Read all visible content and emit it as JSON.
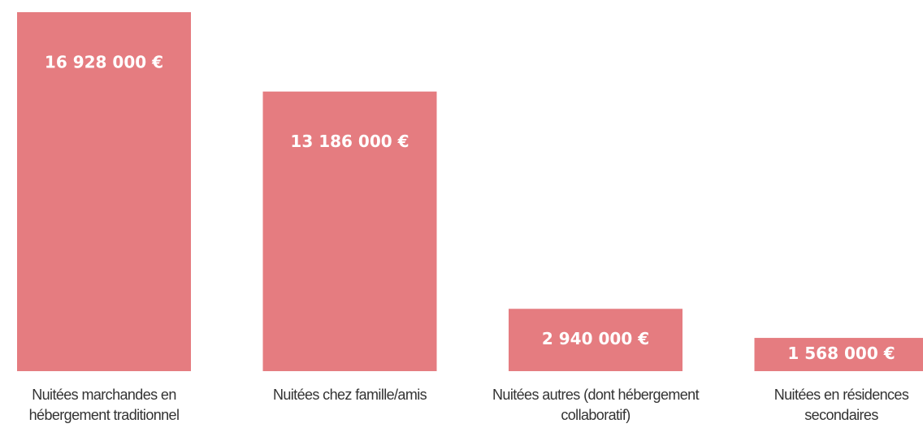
{
  "chart_data": {
    "type": "bar",
    "categories": [
      "Nuitées marchandes en hébergement traditionnel",
      "Nuitées chez famille/amis",
      "Nuitées autres (dont hébergement collaboratif)",
      "Nuitées en résidences secondaires"
    ],
    "values": [
      16928000,
      13186000,
      2940000,
      1568000
    ],
    "value_labels": [
      "16 928 000 €",
      "13 186 000 €",
      "2 940 000 €",
      "1 568 000 €"
    ],
    "color": "#e57c80"
  }
}
